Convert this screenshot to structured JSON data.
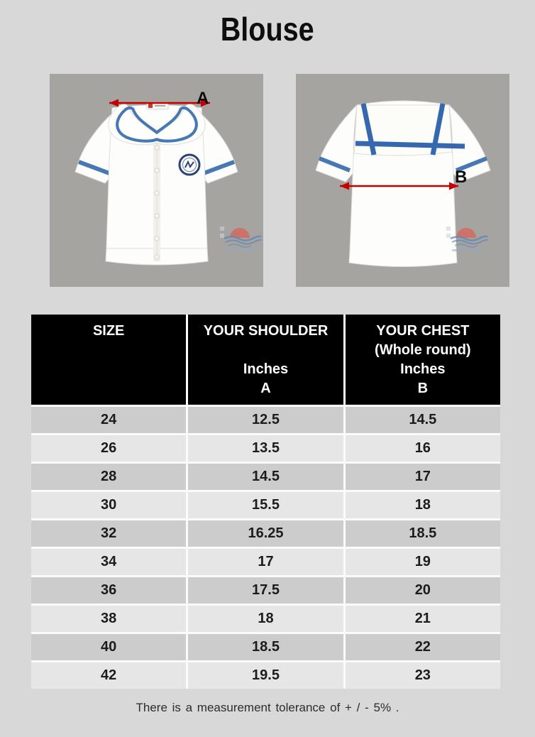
{
  "title": "Blouse",
  "images": {
    "front": {
      "description": "front view of white sailor-collar blouse with blue trim",
      "arrow_label": "A"
    },
    "back": {
      "description": "back view of white sailor-collar blouse with blue trim",
      "arrow_label": "B"
    }
  },
  "table": {
    "headers": {
      "size": [
        "SIZE"
      ],
      "shoulder": [
        "YOUR SHOULDER",
        "",
        "Inches",
        "A"
      ],
      "chest": [
        "YOUR CHEST",
        "(Whole round)",
        "Inches",
        "B"
      ]
    },
    "rows": [
      [
        "24",
        "12.5",
        "14.5"
      ],
      [
        "26",
        "13.5",
        "16"
      ],
      [
        "28",
        "14.5",
        "17"
      ],
      [
        "30",
        "15.5",
        "18"
      ],
      [
        "32",
        "16.25",
        "18.5"
      ],
      [
        "34",
        "17",
        "19"
      ],
      [
        "36",
        "17.5",
        "20"
      ],
      [
        "38",
        "18",
        "21"
      ],
      [
        "40",
        "18.5",
        "22"
      ],
      [
        "42",
        "19.5",
        "23"
      ]
    ]
  },
  "footer": "There is a measurement tolerance of  + / - 5% .",
  "colors": {
    "page_bg": "#d8d8d8",
    "photo_bg": "#a5a4a0",
    "header_bg": "#000000",
    "header_text": "#ffffff",
    "row_dark": "#cccccc",
    "row_light": "#e6e6e6",
    "body_text": "#1c1c1c",
    "arrow_red": "#c40000",
    "trim_blue": "#4678b4"
  }
}
